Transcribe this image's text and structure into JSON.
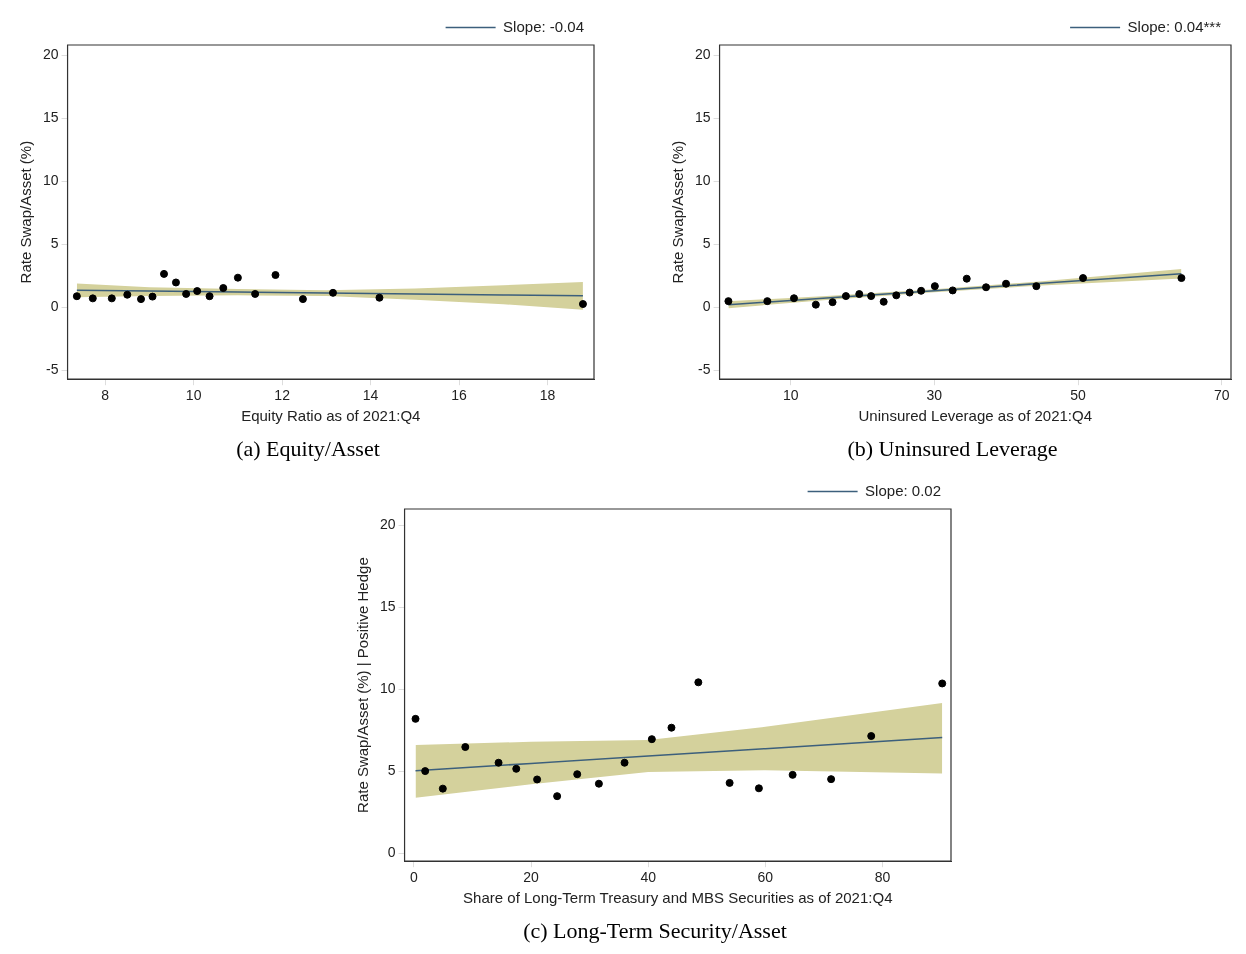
{
  "chart_data": [
    {
      "type": "scatter",
      "xlabel": "Equity Ratio as of 2021:Q4",
      "ylabel": "Rate Swap/Asset (%)",
      "annotations": [
        "(a) Equity/Asset"
      ],
      "xlim": [
        7.15,
        19.05
      ],
      "ylim": [
        -5.7,
        20.8
      ],
      "xticks": [
        8,
        10,
        12,
        14,
        16,
        18
      ],
      "yticks": [
        -5,
        0,
        5,
        10,
        15,
        20
      ],
      "grid": false,
      "legend": "top right",
      "series": [
        {
          "type": "scatter",
          "marker": "circle",
          "color": "#000000",
          "x": [
            7.36,
            7.72,
            8.15,
            8.5,
            8.81,
            9.07,
            9.33,
            9.6,
            9.83,
            10.08,
            10.36,
            10.67,
            11.0,
            11.39,
            11.85,
            12.47,
            13.15,
            14.2,
            18.8
          ],
          "values": [
            0.88,
            0.71,
            0.71,
            1.0,
            0.65,
            0.85,
            2.65,
            1.97,
            1.06,
            1.29,
            0.88,
            1.53,
            2.35,
            1.06,
            2.56,
            0.65,
            1.15,
            0.76,
            0.26
          ]
        },
        {
          "type": "line",
          "marker": "none",
          "name": "Slope: -0.04",
          "color": "#3c5f7c",
          "x": [
            7.36,
            9,
            11,
            13,
            15,
            17,
            18.8
          ],
          "values": [
            1.35,
            1.29,
            1.21,
            1.13,
            1.06,
            0.98,
            0.91
          ],
          "lower": [
            0.79,
            0.9,
            0.95,
            0.9,
            0.6,
            0.25,
            -0.2
          ],
          "upper": [
            1.88,
            1.6,
            1.45,
            1.35,
            1.5,
            1.75,
            2.0
          ]
        }
      ]
    },
    {
      "type": "scatter",
      "xlabel": "Uninsured Leverage as of 2021:Q4",
      "ylabel": "Rate Swap/Asset (%)",
      "annotations": [
        "(b) Uninsured Leverage"
      ],
      "xlim": [
        0.1,
        71.3
      ],
      "ylim": [
        -5.7,
        20.8
      ],
      "xticks": [
        10,
        30,
        50,
        70
      ],
      "yticks": [
        -5,
        0,
        5,
        10,
        15,
        20
      ],
      "grid": false,
      "legend": "top right",
      "series": [
        {
          "type": "scatter",
          "marker": "circle",
          "color": "#000000",
          "x": [
            1.33,
            6.75,
            10.46,
            13.5,
            15.83,
            17.69,
            19.55,
            21.2,
            22.95,
            24.7,
            26.56,
            28.16,
            30.07,
            32.55,
            34.51,
            37.2,
            39.98,
            44.2,
            50.7,
            64.4
          ],
          "values": [
            0.49,
            0.49,
            0.72,
            0.21,
            0.41,
            0.89,
            1.05,
            0.89,
            0.44,
            0.95,
            1.17,
            1.31,
            1.68,
            1.34,
            2.27,
            1.59,
            1.87,
            1.68,
            2.32,
            2.32
          ]
        },
        {
          "type": "line",
          "marker": "none",
          "name": "Slope: 0.04***",
          "color": "#3c5f7c",
          "x": [
            1.33,
            15,
            30,
            45,
            64.4
          ],
          "values": [
            0.21,
            0.74,
            1.32,
            1.9,
            2.66
          ],
          "lower": [
            -0.07,
            0.59,
            1.2,
            1.73,
            2.29
          ],
          "upper": [
            0.49,
            0.89,
            1.44,
            2.07,
            3.03
          ]
        }
      ]
    },
    {
      "type": "scatter",
      "xlabel": "Share of Long-Term Treasury and MBS Securities as of 2021:Q4",
      "ylabel": "Rate Swap/Asset (%) | Positive Hedge",
      "annotations": [
        "(c) Long-Term Security/Asset"
      ],
      "xlim": [
        -1.6,
        91.7
      ],
      "ylim": [
        -0.5,
        21
      ],
      "xticks": [
        0,
        20,
        40,
        60,
        80
      ],
      "yticks": [
        0,
        5,
        10,
        15,
        20
      ],
      "grid": false,
      "legend": "top right",
      "series": [
        {
          "type": "scatter",
          "marker": "circle",
          "color": "#000000",
          "x": [
            0.27,
            1.92,
            4.93,
            8.77,
            14.45,
            17.47,
            21.03,
            24.45,
            27.88,
            31.58,
            35.96,
            40.62,
            43.97,
            48.56,
            53.9,
            58.9,
            64.66,
            71.23,
            78.08,
            90.2
          ],
          "values": [
            8.19,
            5.0,
            3.93,
            6.47,
            5.51,
            5.14,
            4.49,
            3.47,
            4.81,
            4.23,
            5.51,
            6.95,
            7.65,
            10.42,
            4.28,
            3.95,
            4.77,
            4.51,
            7.14,
            10.35
          ]
        },
        {
          "type": "line",
          "marker": "none",
          "name": "Slope: 0.02",
          "color": "#3c5f7c",
          "x": [
            0.27,
            20,
            40,
            60,
            90.2
          ],
          "values": [
            5.02,
            5.47,
            5.92,
            6.37,
            7.05
          ],
          "lower": [
            3.37,
            4.19,
            4.95,
            5.05,
            4.86
          ],
          "upper": [
            6.6,
            6.79,
            6.9,
            7.7,
            9.16
          ]
        }
      ]
    }
  ]
}
